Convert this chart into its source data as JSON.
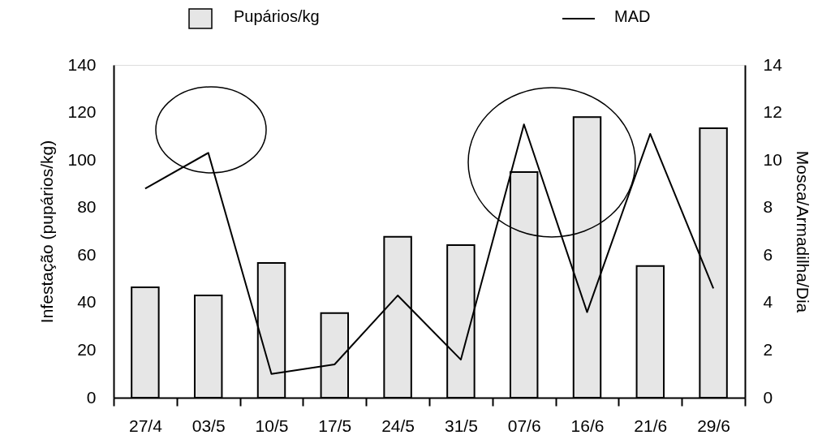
{
  "chart_data": {
    "type": "bar",
    "xlabel": null,
    "ylabel": "Infestação (pupários/kg)",
    "y2label": "Mosca/Armadilha/Dia",
    "categories": [
      "27/4",
      "03/5",
      "10/5",
      "17/5",
      "24/5",
      "31/5",
      "07/6",
      "16/6",
      "21/6",
      "29/6"
    ],
    "series": [
      {
        "name": "Pupários/kg",
        "color": "#e6e6e6",
        "values": [
          46.4,
          43.0,
          56.7,
          35.6,
          67.7,
          64.2,
          94.9,
          118.1,
          55.4,
          113.4
        ]
      },
      {
        "name": "MAD",
        "type": "line",
        "axis": "y2",
        "color": "#000000",
        "values": [
          8.8,
          10.3,
          1.0,
          1.4,
          4.3,
          1.6,
          11.5,
          3.6,
          11.1,
          4.6
        ]
      }
    ],
    "ylim": [
      0,
      140
    ],
    "yticks": [
      0,
      20,
      40,
      60,
      80,
      100,
      120,
      140
    ],
    "y2lim": [
      0,
      14
    ],
    "y2ticks": [
      0,
      2,
      4,
      6,
      8,
      10,
      12,
      14
    ],
    "legend": "top",
    "grid": false
  }
}
